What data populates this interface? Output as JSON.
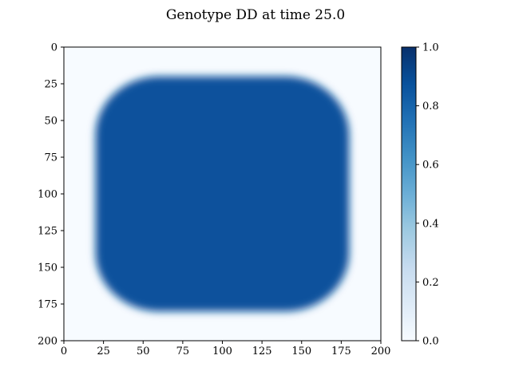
{
  "chart_data": {
    "type": "heatmap",
    "title": "Genotype DD at time 25.0",
    "xlabel": "",
    "ylabel": "",
    "xlim": [
      0,
      200
    ],
    "ylim": [
      200,
      0
    ],
    "x_ticks": [
      "0",
      "25",
      "50",
      "75",
      "100",
      "125",
      "150",
      "175",
      "200"
    ],
    "y_ticks": [
      "0",
      "25",
      "50",
      "75",
      "100",
      "125",
      "150",
      "175",
      "200"
    ],
    "grid": false,
    "colormap": "Blues",
    "colorbar": {
      "range": [
        0.0,
        1.0
      ],
      "ticks": [
        "0.0",
        "0.2",
        "0.4",
        "0.6",
        "0.8",
        "1.0"
      ]
    },
    "field": {
      "shape": "rounded-square",
      "x_range": [
        20,
        180
      ],
      "y_range": [
        20,
        180
      ],
      "corner_radius": 40,
      "inside_value": 0.82,
      "outside_value": 0.0
    },
    "colors": {
      "low": "#f7fbff",
      "mid": "#6baed6",
      "high": "#08306b"
    }
  }
}
